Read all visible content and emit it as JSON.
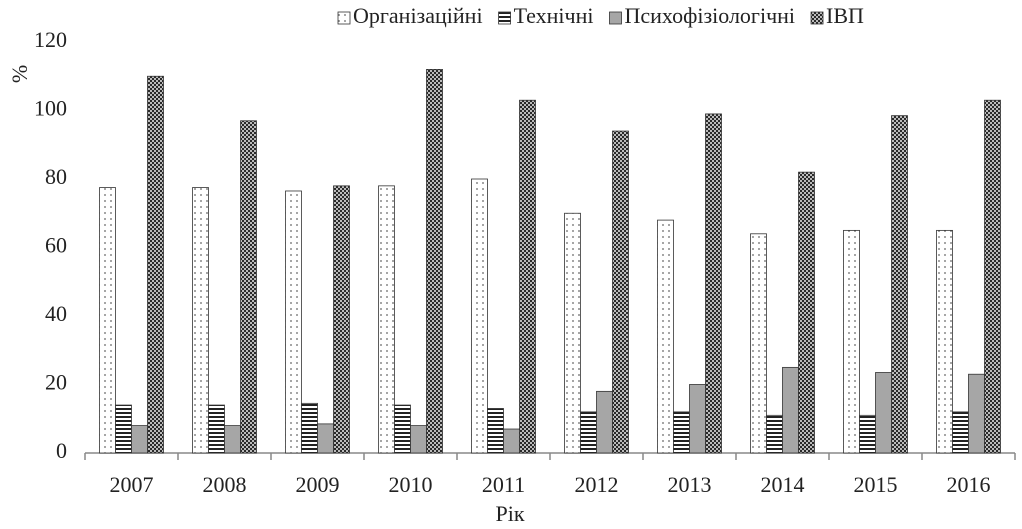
{
  "chart_data": {
    "type": "bar",
    "x_label": "Рік",
    "y_label": "%",
    "categories": [
      "2007",
      "2008",
      "2009",
      "2010",
      "2011",
      "2012",
      "2013",
      "2014",
      "2015",
      "2016"
    ],
    "series": [
      {
        "name": "Організаційні",
        "color": "#ffffff",
        "pattern": "dots",
        "values": [
          77.5,
          77.5,
          76.5,
          78,
          80,
          70,
          68,
          64,
          65,
          65
        ]
      },
      {
        "name": "Технічні",
        "color": "#ffffff",
        "pattern": "stripes",
        "values": [
          14,
          14,
          14.5,
          14,
          13,
          12,
          12,
          11,
          11,
          12
        ]
      },
      {
        "name": "Психофізіологічні",
        "color": "#a6a6a6",
        "pattern": "solid",
        "values": [
          8,
          8,
          8.5,
          8,
          7,
          18,
          20,
          25,
          23.5,
          23
        ]
      },
      {
        "name": "ІВП",
        "color": "#3a3a3a",
        "pattern": "checker",
        "values": [
          110,
          97,
          78,
          112,
          103,
          94,
          99,
          82,
          98.5,
          103
        ]
      }
    ],
    "ylim": [
      0,
      120
    ],
    "yticks": [
      0,
      20,
      40,
      60,
      80,
      100,
      120
    ],
    "grid": false,
    "legend": "top"
  }
}
